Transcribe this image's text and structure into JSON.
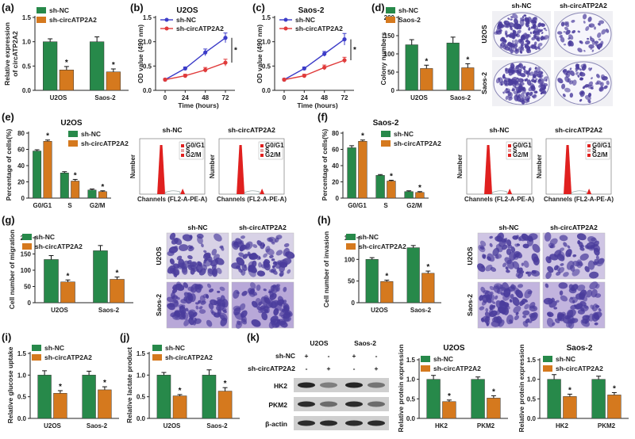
{
  "colors": {
    "green": "#27894A",
    "orange": "#D5791E",
    "blue": "#3C3CC8",
    "red": "#E03A3A",
    "hist": "#E0201F",
    "stain": "#4A3C9C",
    "stainBg": "#D8D2E6",
    "invBg": "#C9BDE0"
  },
  "panels": {
    "a": {
      "label": "(a)",
      "ylabel": "Relative expression",
      "ylabel2": "of circATP2A2",
      "legend": [
        "sh-NC",
        "sh-circATP2A2"
      ],
      "yticks": [
        "0.0",
        "0.5",
        "1.0",
        "1.5"
      ],
      "star": "*"
    },
    "b": {
      "label": "(b)",
      "title": "U2OS",
      "ylabel": "OD value (490 nm)",
      "xlabel": "Time (hours)",
      "legend": [
        "sh-NC",
        "sh-circATP2A2"
      ],
      "xticks": [
        "0",
        "24",
        "48",
        "72"
      ],
      "yticks": [
        "0.0",
        "0.5",
        "1.0",
        "1.5"
      ],
      "star": "*"
    },
    "c": {
      "label": "(c)",
      "title": "Saos-2",
      "ylabel": "OD value (490 nm)",
      "xlabel": "Time (hours)",
      "legend": [
        "sh-NC",
        "sh-circATP2A2"
      ],
      "xticks": [
        "0",
        "24",
        "48",
        "72"
      ],
      "yticks": [
        "0.0",
        "0.5",
        "1.0",
        "1.5"
      ],
      "star": "*"
    },
    "d": {
      "label": "(d)",
      "ylabel": "Colony numbers",
      "legend": [
        "sh-NC",
        "Saos-2"
      ],
      "yticks": [
        "0",
        "50",
        "100",
        "150",
        "200"
      ],
      "img_cols": [
        "sh-NC",
        "sh-circATP2A2"
      ],
      "img_rows": [
        "U2OS",
        "Saos-2"
      ],
      "star": "*"
    },
    "e": {
      "label": "(e)",
      "title": "U2OS",
      "ylabel": "Percentage of cells(%)",
      "legend": [
        "sh-NC",
        "sh-circATP2A2"
      ],
      "yticks": [
        "0",
        "20",
        "40",
        "60",
        "80"
      ],
      "hist_titles": [
        "sh-NC",
        "sh-circATP2A2"
      ],
      "hist_legend": [
        "G0/G1",
        "S",
        "G2/M"
      ],
      "hist_xlabel": "Channels (FL2-A-PE-A)",
      "hist_ylabel": "Number",
      "star": "*"
    },
    "f": {
      "label": "(f)",
      "title": "Saos-2",
      "ylabel": "Percentage of cells(%)",
      "legend": [
        "sh-NC",
        "sh-circATP2A2"
      ],
      "yticks": [
        "0",
        "20",
        "40",
        "60",
        "80"
      ],
      "hist_titles": [
        "sh-NC",
        "sh-circATP2A2"
      ],
      "hist_legend": [
        "G0/G1",
        "S",
        "G2/M"
      ],
      "hist_xlabel": "Channels (FL2-A-PE-A)",
      "hist_ylabel": "Number",
      "star": "*"
    },
    "g": {
      "label": "(g)",
      "ylabel": "Cell number of migration",
      "legend": [
        "sh-NC",
        "sh-circATP2A2"
      ],
      "yticks": [
        "0",
        "50",
        "100",
        "150",
        "200"
      ],
      "img_cols": [
        "sh-NC",
        "sh-circATP2A2"
      ],
      "img_rows": [
        "U2OS",
        "Saos-2"
      ],
      "star": "*"
    },
    "h": {
      "label": "(h)",
      "ylabel": "Cell number of invasion",
      "legend": [
        "sh-NC",
        "sh-circATP2A2"
      ],
      "yticks": [
        "0",
        "50",
        "100",
        "150"
      ],
      "img_cols": [
        "sh-NC",
        "sh-circATP2A2"
      ],
      "img_rows": [
        "U2OS",
        "Saos-2"
      ],
      "star": "*"
    },
    "i": {
      "label": "(i)",
      "ylabel": "Relative glucose uptake",
      "legend": [
        "sh-NC",
        "sh-circATP2A2"
      ],
      "yticks": [
        "0.0",
        "0.5",
        "1.0",
        "1.5"
      ],
      "star": "*"
    },
    "j": {
      "label": "(j)",
      "ylabel": "Relative lactate product",
      "legend": [
        "sh-NC",
        "sh-circATP2A2"
      ],
      "yticks": [
        "0.0",
        "0.5",
        "1.0",
        "1.5"
      ],
      "star": "*"
    },
    "k": {
      "label": "(k)",
      "wb_groups": [
        "U2OS",
        "Saos-2"
      ],
      "wb_rows": [
        "sh-NC",
        "sh-circATP2A2"
      ],
      "wb_signs": [
        [
          "+",
          "-",
          "+",
          "-"
        ],
        [
          "-",
          "+",
          "-",
          "+"
        ]
      ],
      "wb_bands": [
        "HK2",
        "PKM2",
        "β-actin"
      ],
      "titles": [
        "U2OS",
        "Saos-2"
      ],
      "ylabel": "Relative protein expression",
      "legend": [
        "sh-NC",
        "sh-circATP2A2"
      ],
      "yticks": [
        "0.0",
        "0.5",
        "1.0",
        "1.5"
      ],
      "star": "*"
    }
  },
  "chart_data": [
    {
      "id": "a",
      "type": "bar",
      "categories": [
        "U2OS",
        "Saos-2"
      ],
      "ylim": [
        0,
        1.5
      ],
      "series": [
        {
          "name": "sh-NC",
          "values": [
            1.0,
            1.0
          ],
          "err": [
            0.06,
            0.1
          ]
        },
        {
          "name": "sh-circATP2A2",
          "values": [
            0.42,
            0.38
          ],
          "err": [
            0.07,
            0.06
          ]
        }
      ]
    },
    {
      "id": "b",
      "type": "line",
      "title": "U2OS",
      "xlabel": "Time (hours)",
      "ylabel": "OD value (490 nm)",
      "x": [
        0,
        24,
        48,
        72
      ],
      "ylim": [
        0,
        1.5
      ],
      "series": [
        {
          "name": "sh-NC",
          "values": [
            0.22,
            0.45,
            0.78,
            1.08
          ],
          "err": [
            0.02,
            0.03,
            0.07,
            0.1
          ]
        },
        {
          "name": "sh-circATP2A2",
          "values": [
            0.22,
            0.3,
            0.42,
            0.57
          ],
          "err": [
            0.02,
            0.03,
            0.05,
            0.07
          ]
        }
      ]
    },
    {
      "id": "c",
      "type": "line",
      "title": "Saos-2",
      "xlabel": "Time (hours)",
      "ylabel": "OD value (490 nm)",
      "x": [
        0,
        24,
        48,
        72
      ],
      "ylim": [
        0,
        1.5
      ],
      "series": [
        {
          "name": "sh-NC",
          "values": [
            0.22,
            0.45,
            0.75,
            1.05
          ],
          "err": [
            0.02,
            0.03,
            0.05,
            0.12
          ]
        },
        {
          "name": "sh-circATP2A2",
          "values": [
            0.22,
            0.3,
            0.47,
            0.62
          ],
          "err": [
            0.02,
            0.03,
            0.05,
            0.06
          ]
        }
      ]
    },
    {
      "id": "d",
      "type": "bar",
      "categories": [
        "U2OS",
        "Saos-2"
      ],
      "ylim": [
        0,
        200
      ],
      "series": [
        {
          "name": "sh-NC",
          "values": [
            125,
            130
          ],
          "err": [
            14,
            16
          ]
        },
        {
          "name": "Saos-2",
          "values": [
            60,
            62
          ],
          "err": [
            9,
            11
          ]
        }
      ]
    },
    {
      "id": "e",
      "type": "bar",
      "title": "U2OS",
      "categories": [
        "G0/G1",
        "S",
        "G2/M"
      ],
      "ylim": [
        0,
        80
      ],
      "series": [
        {
          "name": "sh-NC",
          "values": [
            58,
            31,
            10
          ],
          "err": [
            1.5,
            1.5,
            1.2
          ]
        },
        {
          "name": "sh-circATP2A2",
          "values": [
            70,
            21,
            8
          ],
          "err": [
            1.5,
            2,
            1
          ]
        }
      ]
    },
    {
      "id": "f",
      "type": "bar",
      "title": "Saos-2",
      "categories": [
        "G0/G1",
        "S",
        "G2/M"
      ],
      "ylim": [
        0,
        80
      ],
      "series": [
        {
          "name": "sh-NC",
          "values": [
            62,
            28,
            8
          ],
          "err": [
            2.5,
            1,
            1
          ]
        },
        {
          "name": "sh-circATP2A2",
          "values": [
            70,
            21,
            7
          ],
          "err": [
            1.5,
            1,
            1
          ]
        }
      ]
    },
    {
      "id": "g",
      "type": "bar",
      "categories": [
        "U2OS",
        "Saos-2"
      ],
      "ylim": [
        0,
        200
      ],
      "series": [
        {
          "name": "sh-NC",
          "values": [
            133,
            160
          ],
          "err": [
            12,
            16
          ]
        },
        {
          "name": "sh-circATP2A2",
          "values": [
            64,
            72
          ],
          "err": [
            6,
            7
          ]
        }
      ]
    },
    {
      "id": "h",
      "type": "bar",
      "categories": [
        "U2OS",
        "Saos-2"
      ],
      "ylim": [
        0,
        150
      ],
      "series": [
        {
          "name": "sh-NC",
          "values": [
            100,
            127
          ],
          "err": [
            4,
            5
          ]
        },
        {
          "name": "sh-circATP2A2",
          "values": [
            49,
            68
          ],
          "err": [
            3,
            5
          ]
        }
      ]
    },
    {
      "id": "i",
      "type": "bar",
      "categories": [
        "U2OS",
        "Saos-2"
      ],
      "ylim": [
        0,
        1.5
      ],
      "series": [
        {
          "name": "sh-NC",
          "values": [
            1.0,
            1.0
          ],
          "err": [
            0.1,
            0.09
          ]
        },
        {
          "name": "sh-circATP2A2",
          "values": [
            0.58,
            0.66
          ],
          "err": [
            0.06,
            0.07
          ]
        }
      ]
    },
    {
      "id": "j",
      "type": "bar",
      "categories": [
        "U2OS",
        "Saos-2"
      ],
      "ylim": [
        0,
        1.5
      ],
      "series": [
        {
          "name": "sh-NC",
          "values": [
            1.0,
            1.0
          ],
          "err": [
            0.06,
            0.12
          ]
        },
        {
          "name": "sh-circATP2A2",
          "values": [
            0.52,
            0.63
          ],
          "err": [
            0.03,
            0.08
          ]
        }
      ]
    },
    {
      "id": "k1",
      "type": "bar",
      "title": "U2OS",
      "categories": [
        "HK2",
        "PKM2"
      ],
      "ylim": [
        0,
        1.5
      ],
      "series": [
        {
          "name": "sh-NC",
          "values": [
            1.0,
            1.0
          ],
          "err": [
            0.1,
            0.06
          ]
        },
        {
          "name": "sh-circATP2A2",
          "values": [
            0.43,
            0.52
          ],
          "err": [
            0.04,
            0.06
          ]
        }
      ]
    },
    {
      "id": "k2",
      "type": "bar",
      "title": "Saos-2",
      "categories": [
        "HK2",
        "PKM2"
      ],
      "ylim": [
        0,
        1.5
      ],
      "series": [
        {
          "name": "sh-NC",
          "values": [
            1.0,
            1.0
          ],
          "err": [
            0.12,
            0.08
          ]
        },
        {
          "name": "sh-circATP2A2",
          "values": [
            0.56,
            0.6
          ],
          "err": [
            0.06,
            0.06
          ]
        }
      ]
    }
  ]
}
